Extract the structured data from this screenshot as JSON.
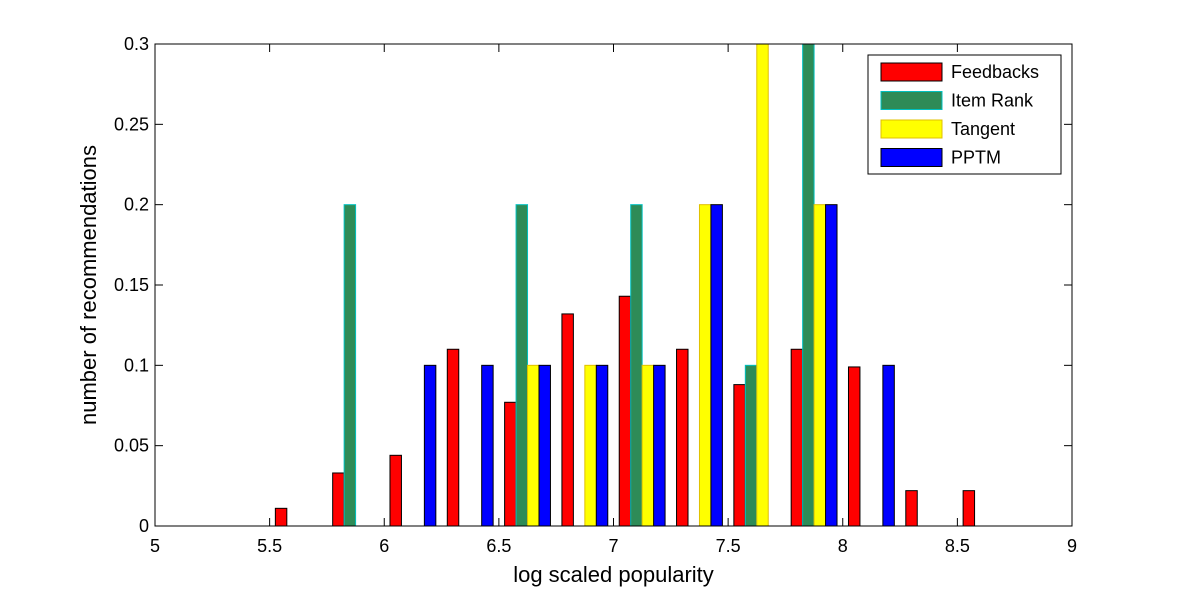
{
  "chart_data": {
    "type": "bar",
    "xlabel": "log scaled popularity",
    "ylabel": "number of recommendations",
    "xlim": [
      5,
      9
    ],
    "ylim": [
      0,
      0.3
    ],
    "xticks": [
      5,
      5.5,
      6,
      6.5,
      7,
      7.5,
      8,
      8.5,
      9
    ],
    "yticks": [
      0,
      0.05,
      0.1,
      0.15,
      0.2,
      0.25,
      0.3
    ],
    "xtick_labels": [
      "5",
      "5.5",
      "6",
      "6.5",
      "7",
      "7.5",
      "8",
      "8.5",
      "9"
    ],
    "ytick_labels": [
      "0",
      "0.05",
      "0.1",
      "0.15",
      "0.2",
      "0.25",
      "0.3"
    ],
    "grid": false,
    "legend_position": "top-right",
    "bin_width": 0.25,
    "x": [
      5.125,
      5.375,
      5.625,
      5.875,
      6.125,
      6.375,
      6.625,
      6.875,
      7.125,
      7.375,
      7.625,
      7.875,
      8.125,
      8.375,
      8.625,
      8.875
    ],
    "series": [
      {
        "name": "Feedbacks",
        "color": "#ff0000",
        "edge": "#000000",
        "values": [
          0,
          0,
          0.011,
          0.033,
          0.044,
          0.11,
          0.077,
          0.132,
          0.143,
          0.11,
          0.088,
          0.11,
          0.099,
          0.022,
          0.022,
          0
        ]
      },
      {
        "name": "Item Rank",
        "color": "#2e8b57",
        "edge": "#00c0c0",
        "values": [
          0,
          0,
          0,
          0.2,
          0,
          0,
          0.2,
          0,
          0.2,
          0,
          0.1,
          0.3,
          0,
          0,
          0,
          0
        ]
      },
      {
        "name": "Tangent",
        "color": "#ffff00",
        "edge": "#e0c000",
        "values": [
          0,
          0,
          0,
          0,
          0,
          0,
          0.1,
          0.1,
          0.1,
          0.2,
          0.3,
          0.2,
          0,
          0,
          0,
          0
        ]
      },
      {
        "name": "PPTM",
        "color": "#0000ff",
        "edge": "#000000",
        "values": [
          0,
          0,
          0,
          0,
          0.1,
          0.1,
          0.1,
          0.1,
          0.1,
          0.2,
          0,
          0.2,
          0.1,
          0,
          0,
          0
        ]
      }
    ]
  }
}
